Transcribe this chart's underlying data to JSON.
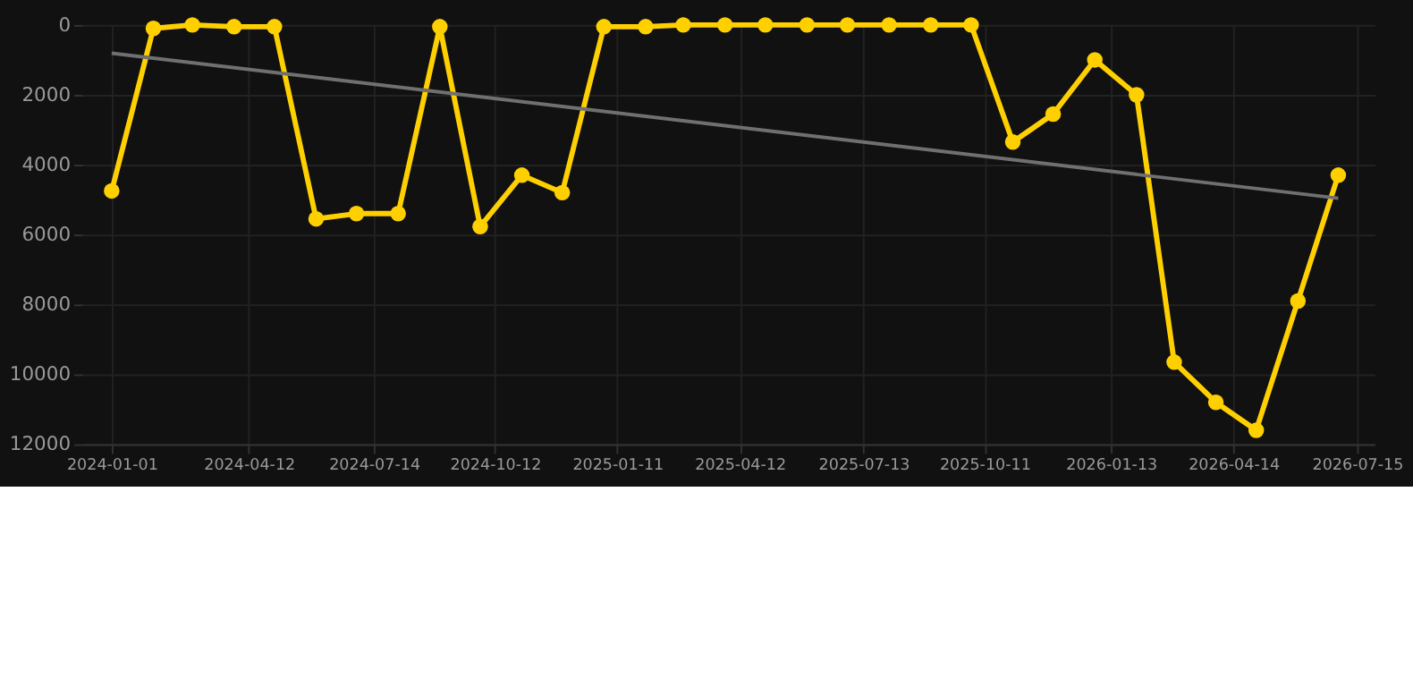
{
  "chart_data": {
    "type": "line",
    "x": [
      "2024-01-01",
      "2024-02-01",
      "2024-03-01",
      "2024-04-01",
      "2024-05-01",
      "2024-06-01",
      "2024-07-01",
      "2024-08-01",
      "2024-09-01",
      "2024-10-01",
      "2024-11-01",
      "2024-12-01",
      "2025-01-01",
      "2025-02-01",
      "2025-03-01",
      "2025-04-01",
      "2025-05-01",
      "2025-06-01",
      "2025-07-01",
      "2025-08-01",
      "2025-09-01",
      "2025-10-01",
      "2025-11-01",
      "2025-12-01",
      "2026-01-01",
      "2026-02-01",
      "2026-03-01",
      "2026-04-01",
      "2026-05-01",
      "2026-06-01",
      "2026-07-01"
    ],
    "series": [
      {
        "color": "#ffd000",
        "marker": "circle",
        "values": [
          4750,
          100,
          0,
          50,
          50,
          5550,
          5400,
          5400,
          50,
          5770,
          4300,
          4800,
          50,
          50,
          0,
          0,
          0,
          0,
          0,
          0,
          0,
          0,
          3350,
          2550,
          1000,
          2000,
          9650,
          10800,
          11600,
          7900,
          4300
        ]
      },
      {
        "type": "line",
        "color": "#707070",
        "marker": "none",
        "x": [
          "2024-01-01",
          "2026-07-01"
        ],
        "values": [
          810,
          4960
        ]
      }
    ],
    "xlim": [
      "2023-12-10",
      "2026-07-28"
    ],
    "xticks": [
      "2024-01-01",
      "2024-04-12",
      "2024-07-14",
      "2024-10-12",
      "2025-01-11",
      "2025-04-12",
      "2025-07-13",
      "2025-10-11",
      "2026-01-13",
      "2026-04-14",
      "2026-07-15"
    ],
    "ylim": [
      12000,
      0
    ],
    "yticks": [
      0,
      2000,
      4000,
      6000,
      8000,
      10000,
      12000
    ],
    "grid": true
  }
}
